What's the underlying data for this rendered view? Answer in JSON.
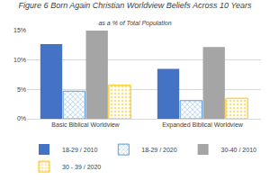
{
  "chart_data": {
    "type": "bar",
    "title": "Figure 6 Born Again Christian Worldview Beliefs Across 10 Years",
    "subtitle": "as a % of Total Population",
    "categories": [
      "Basic Biblical Worldview",
      "Expanded Biblical Worldview"
    ],
    "series": [
      {
        "name": "18-29 / 2010",
        "color": "#4472c4",
        "values": [
          12.7,
          8.5
        ]
      },
      {
        "name": "18-29 / 2020",
        "color": "#5b9bd5",
        "marker": "crosshatch",
        "values": [
          4.7,
          3.1
        ]
      },
      {
        "name": "30-40 / 2010",
        "color": "#a5a5a5",
        "values": [
          15.0,
          12.2
        ]
      },
      {
        "name": "30 - 39 / 2020",
        "color": "#ffc000",
        "marker": "dotted",
        "values": [
          5.7,
          3.5
        ]
      }
    ],
    "ylim": [
      0,
      15
    ],
    "yticks": [
      {
        "value": 0,
        "label": "0%"
      },
      {
        "value": 5,
        "label": "5%"
      },
      {
        "value": 10,
        "label": "10%"
      },
      {
        "value": 15,
        "label": "15%"
      }
    ],
    "grid": true,
    "legend": "bottom"
  }
}
